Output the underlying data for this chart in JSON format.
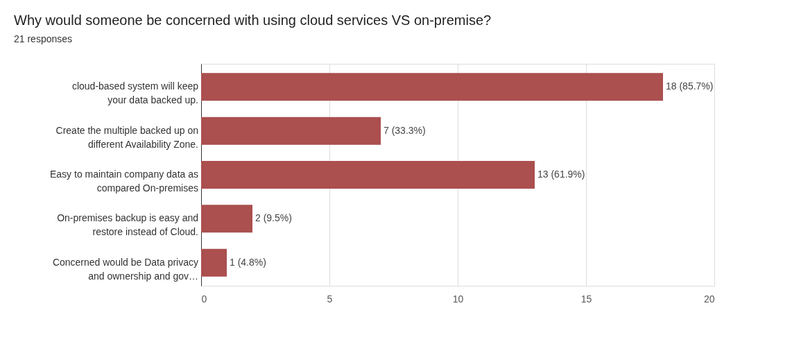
{
  "chart_data": {
    "type": "bar",
    "orientation": "horizontal",
    "title": "Why would someone be concerned with using cloud services VS on-premise?",
    "subtitle": "21 responses",
    "categories": [
      "cloud-based system will keep your data backed up.",
      "Create the multiple backed up on different Availability Zone.",
      "Easy to maintain company data as compared On-premises",
      "On-premises backup is easy and restore instead of Cloud.",
      "Concerned would be Data privacy and ownership and gov…"
    ],
    "values": [
      18,
      7,
      13,
      2,
      1
    ],
    "value_labels": [
      "18 (85.7%)",
      "7 (33.3%)",
      "13 (61.9%)",
      "2 (9.5%)",
      "1 (4.8%)"
    ],
    "color": "#ab4f4f",
    "xlim": [
      0,
      20
    ],
    "xticks": [
      0,
      5,
      10,
      15,
      20
    ],
    "grid": "x"
  }
}
